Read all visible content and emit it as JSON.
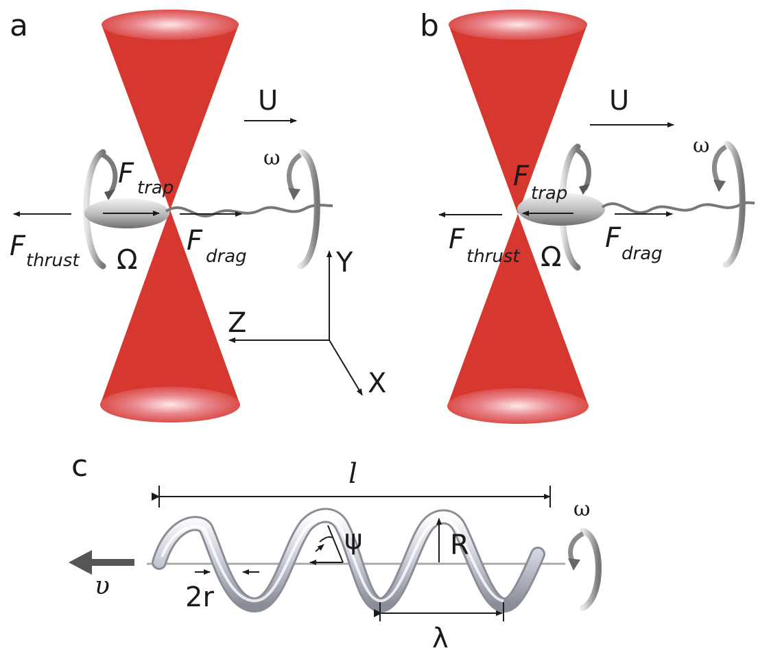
{
  "panels": {
    "a": {
      "label": "a",
      "velocity": "U",
      "flagellum_rotation": "ω",
      "body_rotation": "Ω",
      "trap_force": {
        "main": "F",
        "sub": "trap"
      },
      "thrust_force": {
        "main": "F",
        "sub": "thrust"
      },
      "drag_force": {
        "main": "F",
        "sub": "drag"
      },
      "axes": {
        "y": "Y",
        "z": "Z",
        "x": "X"
      }
    },
    "b": {
      "label": "b",
      "velocity": "U",
      "flagellum_rotation": "ω",
      "body_rotation": "Ω",
      "trap_force": {
        "main": "F",
        "sub": "trap"
      },
      "thrust_force": {
        "main": "F",
        "sub": "thrust"
      },
      "drag_force": {
        "main": "F",
        "sub": "drag"
      }
    },
    "c": {
      "label": "c",
      "length": "l",
      "rotation": "ω",
      "velocity": "υ",
      "pitch_angle": "ψ",
      "radius": "R",
      "thickness": "2r",
      "wavelength": "λ"
    }
  },
  "colors": {
    "laser_cone": "#d6372f",
    "laser_cap": "#e8848a",
    "arrow": "#1a1a1a",
    "helix": "#c9ccd6"
  },
  "icons": [
    "laser-beam-cone",
    "cell-body",
    "flagellum",
    "rotation-arrow",
    "helix"
  ]
}
